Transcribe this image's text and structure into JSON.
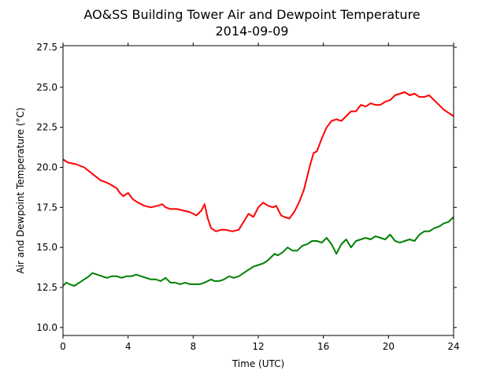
{
  "chart_data": {
    "type": "line",
    "title": "AO&SS Building Tower Air and Dewpoint Temperature",
    "subtitle": "2014-09-09",
    "xlabel": "Time (UTC)",
    "ylabel": "Air and Dewpoint Temperature (°C)",
    "xlim": [
      0,
      24
    ],
    "ylim": [
      9.5,
      27.6
    ],
    "xticks": [
      0,
      4,
      8,
      12,
      16,
      20,
      24
    ],
    "xtick_labels": [
      "0",
      "4",
      "8",
      "12",
      "16",
      "20",
      "24"
    ],
    "yticks": [
      10.0,
      12.5,
      15.0,
      17.5,
      20.0,
      22.5,
      25.0,
      27.5
    ],
    "ytick_labels": [
      "10.0",
      "12.5",
      "15.0",
      "17.5",
      "20.0",
      "22.5",
      "25.0",
      "27.5"
    ],
    "grid": false,
    "legend": "none",
    "series": [
      {
        "color": "#ff0000",
        "x": [
          0,
          0.3,
          0.8,
          1.3,
          1.8,
          2.3,
          2.8,
          3.3,
          3.5,
          3.7,
          4.0,
          4.3,
          4.6,
          5.0,
          5.4,
          5.8,
          6.1,
          6.3,
          6.6,
          7.0,
          7.4,
          7.8,
          8.2,
          8.5,
          8.7,
          8.9,
          9.1,
          9.4,
          9.7,
          10.0,
          10.4,
          10.8,
          11.1,
          11.4,
          11.7,
          12.0,
          12.3,
          12.6,
          12.9,
          13.1,
          13.4,
          13.6,
          13.9,
          14.2,
          14.5,
          14.8,
          15.0,
          15.2,
          15.4,
          15.6,
          15.9,
          16.2,
          16.5,
          16.8,
          17.1,
          17.4,
          17.7,
          18.0,
          18.3,
          18.6,
          18.9,
          19.2,
          19.5,
          19.8,
          20.1,
          20.4,
          20.7,
          21.0,
          21.3,
          21.6,
          21.9,
          22.2,
          22.5,
          22.8,
          23.1,
          23.4,
          23.7,
          24.0
        ],
        "y": [
          20.5,
          20.3,
          20.2,
          20.0,
          19.6,
          19.2,
          19.0,
          18.7,
          18.4,
          18.2,
          18.4,
          18.0,
          17.8,
          17.6,
          17.5,
          17.6,
          17.7,
          17.5,
          17.4,
          17.4,
          17.3,
          17.2,
          17.0,
          17.3,
          17.7,
          16.8,
          16.2,
          16.0,
          16.1,
          16.1,
          16.0,
          16.1,
          16.6,
          17.1,
          16.9,
          17.5,
          17.8,
          17.6,
          17.5,
          17.6,
          17.0,
          16.9,
          16.8,
          17.2,
          17.8,
          18.6,
          19.4,
          20.2,
          20.9,
          21.0,
          21.8,
          22.5,
          22.9,
          23.0,
          22.9,
          23.2,
          23.5,
          23.5,
          23.9,
          23.8,
          24.0,
          23.9,
          23.9,
          24.1,
          24.2,
          24.5,
          24.6,
          24.7,
          24.5,
          24.6,
          24.4,
          24.4,
          24.5,
          24.2,
          23.9,
          23.6,
          23.4,
          23.2
        ]
      },
      {
        "color": "#008000",
        "x": [
          0,
          0.2,
          0.4,
          0.7,
          1.0,
          1.3,
          1.6,
          1.8,
          2.1,
          2.4,
          2.7,
          3.0,
          3.3,
          3.6,
          3.9,
          4.2,
          4.5,
          4.8,
          5.1,
          5.4,
          5.7,
          6.0,
          6.3,
          6.6,
          6.9,
          7.2,
          7.5,
          7.8,
          8.1,
          8.4,
          8.7,
          8.9,
          9.1,
          9.3,
          9.6,
          9.9,
          10.2,
          10.5,
          10.8,
          11.1,
          11.4,
          11.7,
          12.0,
          12.3,
          12.6,
          12.8,
          13.0,
          13.2,
          13.5,
          13.8,
          14.1,
          14.4,
          14.7,
          15.0,
          15.3,
          15.6,
          15.9,
          16.2,
          16.5,
          16.8,
          17.1,
          17.4,
          17.7,
          18.0,
          18.3,
          18.6,
          18.9,
          19.2,
          19.5,
          19.8,
          20.1,
          20.4,
          20.7,
          21.0,
          21.3,
          21.6,
          21.9,
          22.2,
          22.5,
          22.8,
          23.1,
          23.4,
          23.7,
          24.0
        ],
        "y": [
          12.6,
          12.8,
          12.7,
          12.6,
          12.8,
          13.0,
          13.2,
          13.4,
          13.3,
          13.2,
          13.1,
          13.2,
          13.2,
          13.1,
          13.2,
          13.2,
          13.3,
          13.2,
          13.1,
          13.0,
          13.0,
          12.9,
          13.1,
          12.8,
          12.8,
          12.7,
          12.8,
          12.7,
          12.7,
          12.7,
          12.8,
          12.9,
          13.0,
          12.9,
          12.9,
          13.0,
          13.2,
          13.1,
          13.2,
          13.4,
          13.6,
          13.8,
          13.9,
          14.0,
          14.2,
          14.4,
          14.6,
          14.5,
          14.7,
          15.0,
          14.8,
          14.8,
          15.1,
          15.2,
          15.4,
          15.4,
          15.3,
          15.6,
          15.2,
          14.6,
          15.2,
          15.5,
          15.0,
          15.4,
          15.5,
          15.6,
          15.5,
          15.7,
          15.6,
          15.5,
          15.8,
          15.4,
          15.3,
          15.4,
          15.5,
          15.4,
          15.8,
          16.0,
          16.0,
          16.2,
          16.3,
          16.5,
          16.6,
          16.9
        ]
      }
    ]
  }
}
